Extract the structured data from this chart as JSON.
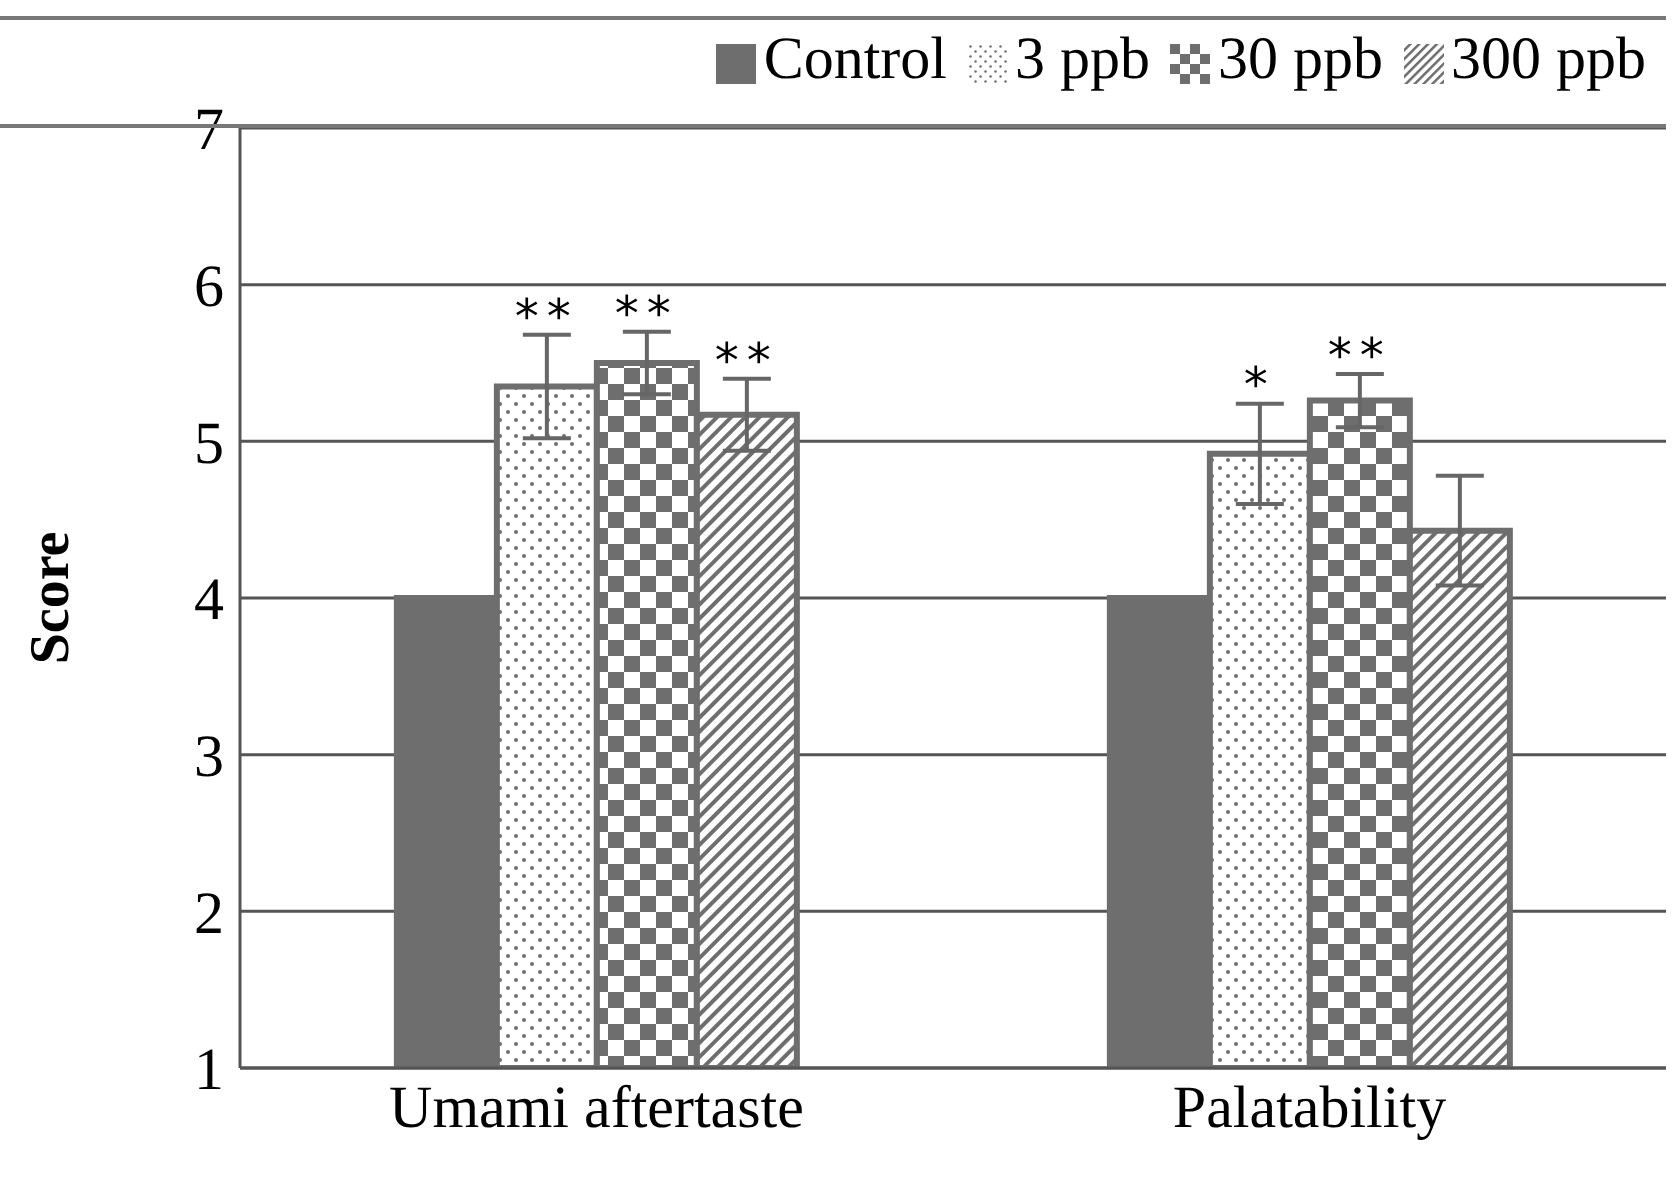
{
  "chart_data": {
    "type": "bar",
    "ylabel": "Score",
    "categories": [
      "Umami aftertaste",
      "Palatability"
    ],
    "series": [
      {
        "name": "Control",
        "color": "#6e6e6e",
        "values": [
          4.0,
          4.0
        ]
      },
      {
        "name": "3 ppb",
        "color": "#6e6e6e",
        "values": [
          5.35,
          4.92
        ],
        "errors": [
          0.33,
          0.32
        ],
        "value_labels": [
          "**",
          "*"
        ]
      },
      {
        "name": "30 ppb",
        "color": "#6e6e6e",
        "values": [
          5.5,
          5.26
        ],
        "errors": [
          0.2,
          0.17
        ],
        "value_labels": [
          "**",
          "**"
        ]
      },
      {
        "name": "300 ppb",
        "color": "#6e6e6e",
        "values": [
          5.17,
          4.43
        ],
        "errors": [
          0.23,
          0.35
        ],
        "value_labels": [
          "**",
          null
        ]
      }
    ],
    "ylim": [
      1,
      7
    ],
    "yticks": [
      1,
      2,
      3,
      4,
      5,
      6,
      7
    ],
    "grid": "y",
    "legend": "top"
  }
}
